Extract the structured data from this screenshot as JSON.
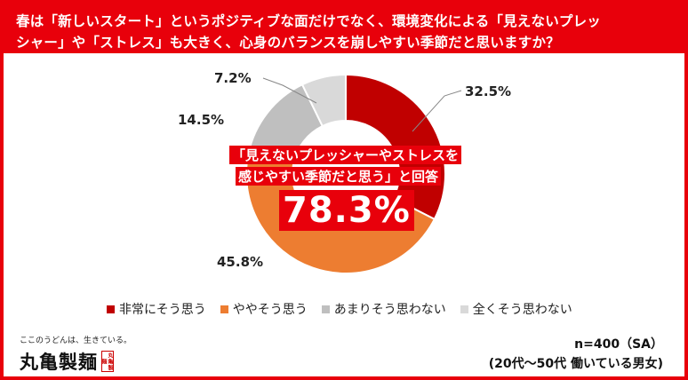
{
  "title": {
    "line1": "春は「新しいスタート」というポジティブな面だけでなく、環境変化による「見えないプレッ",
    "line2": "シャー」や「ストレス」も大きく、心身のバランスを崩しやすい季節だと思いますか？"
  },
  "callout": {
    "line1": "「見えないプレッシャーやストレスを",
    "line2": "感じやすい季節だと思う」と回答",
    "value": "78.3%"
  },
  "chart_data": {
    "type": "pie",
    "categories": [
      "非常にそう思う",
      "ややそう思う",
      "あまりそう思わない",
      "全くそう思わない"
    ],
    "values": [
      32.5,
      45.8,
      14.5,
      7.2
    ],
    "value_labels": [
      "32.5%",
      "45.8%",
      "14.5%",
      "7.2%"
    ],
    "colors": [
      "#c00000",
      "#ed7d31",
      "#bfbfbf",
      "#d9d9d9"
    ]
  },
  "legend": [
    {
      "label": "非常にそう思う",
      "color": "#c00000"
    },
    {
      "label": "ややそう思う",
      "color": "#ed7d31"
    },
    {
      "label": "あまりそう思わない",
      "color": "#bfbfbf"
    },
    {
      "label": "全くそう思わない",
      "color": "#d9d9d9"
    }
  ],
  "logo": {
    "tagline": "ここのうどんは、生きている。",
    "name": "丸亀製麺",
    "seal": "丸亀製麺"
  },
  "sample": {
    "line1": "n=400（SA）",
    "line2": "(20代～50代 働いている男女)"
  },
  "colors": {
    "accent": "#e8000b"
  }
}
